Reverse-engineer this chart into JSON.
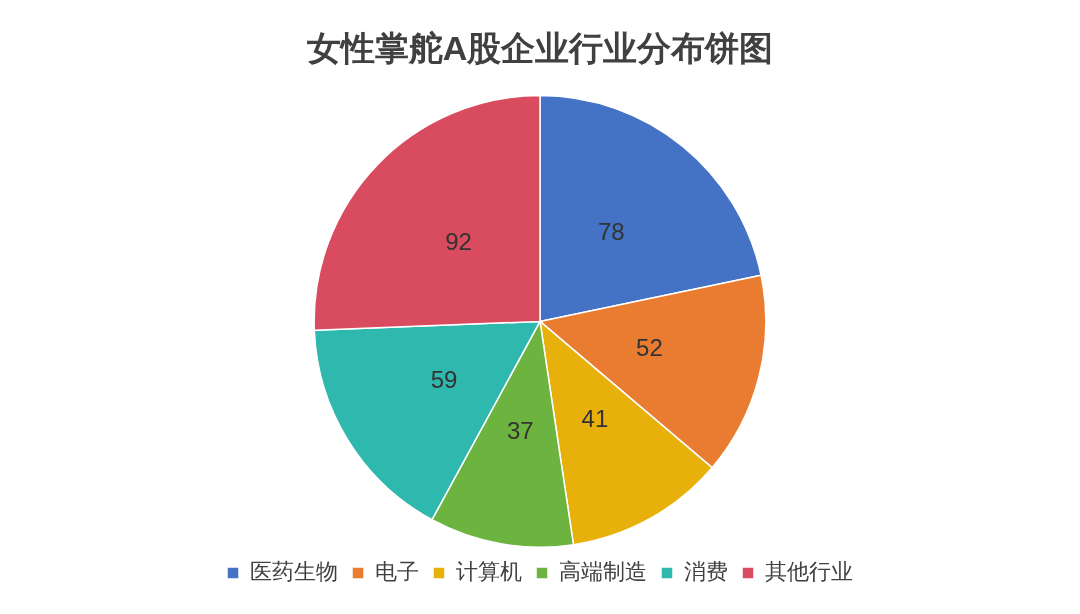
{
  "chart_data": {
    "type": "pie",
    "title": "女性掌舵A股企业行业分布饼图",
    "categories": [
      "医药生物",
      "电子",
      "计算机",
      "高端制造",
      "消费",
      "其他行业"
    ],
    "values": [
      78,
      52,
      41,
      37,
      59,
      92
    ],
    "colors": [
      "#4472c4",
      "#e97c31",
      "#e8b00a",
      "#6db33f",
      "#2fb8ad",
      "#d94b5e"
    ],
    "data_labels": true,
    "legend": "bottom"
  }
}
